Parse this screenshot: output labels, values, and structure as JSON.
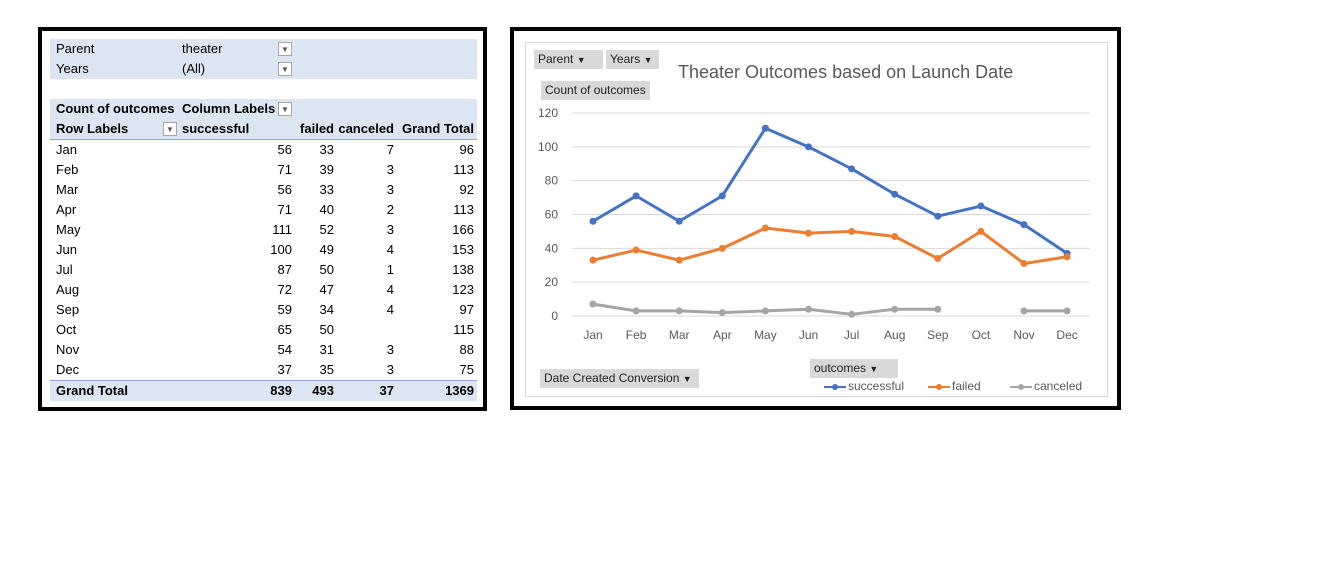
{
  "pivot": {
    "filters": [
      {
        "label": "Parent",
        "value": "theater",
        "icon": "filter-icon"
      },
      {
        "label": "Years",
        "value": "(All)",
        "icon": "dropdown-icon"
      }
    ],
    "values_label": "Count of outcomes",
    "column_labels": "Column Labels",
    "row_labels": "Row Labels",
    "columns": [
      "successful",
      "failed",
      "canceled",
      "Grand Total"
    ],
    "rows": [
      {
        "label": "Jan",
        "successful": "56",
        "failed": "33",
        "canceled": "7",
        "total": "96"
      },
      {
        "label": "Feb",
        "successful": "71",
        "failed": "39",
        "canceled": "3",
        "total": "113"
      },
      {
        "label": "Mar",
        "successful": "56",
        "failed": "33",
        "canceled": "3",
        "total": "92"
      },
      {
        "label": "Apr",
        "successful": "71",
        "failed": "40",
        "canceled": "2",
        "total": "113"
      },
      {
        "label": "May",
        "successful": "111",
        "failed": "52",
        "canceled": "3",
        "total": "166"
      },
      {
        "label": "Jun",
        "successful": "100",
        "failed": "49",
        "canceled": "4",
        "total": "153"
      },
      {
        "label": "Jul",
        "successful": "87",
        "failed": "50",
        "canceled": "1",
        "total": "138"
      },
      {
        "label": "Aug",
        "successful": "72",
        "failed": "47",
        "canceled": "4",
        "total": "123"
      },
      {
        "label": "Sep",
        "successful": "59",
        "failed": "34",
        "canceled": "4",
        "total": "97"
      },
      {
        "label": "Oct",
        "successful": "65",
        "failed": "50",
        "canceled": "",
        "total": "115"
      },
      {
        "label": "Nov",
        "successful": "54",
        "failed": "31",
        "canceled": "3",
        "total": "88"
      },
      {
        "label": "Dec",
        "successful": "37",
        "failed": "35",
        "canceled": "3",
        "total": "75"
      }
    ],
    "grand_total": {
      "label": "Grand Total",
      "successful": "839",
      "failed": "493",
      "canceled": "37",
      "total": "1369"
    }
  },
  "chart_controls": {
    "parent_button": "Parent",
    "years_button": "Years",
    "values_button": "Count of outcomes",
    "axis_button": "Date Created Conversion",
    "legend_button": "outcomes"
  },
  "chart_data": {
    "type": "line",
    "title": "Theater Outcomes based on Launch Date",
    "xlabel": "",
    "ylabel": "Count of outcomes",
    "categories": [
      "Jan",
      "Feb",
      "Mar",
      "Apr",
      "May",
      "Jun",
      "Jul",
      "Aug",
      "Sep",
      "Oct",
      "Nov",
      "Dec"
    ],
    "ylim": [
      0,
      120
    ],
    "yticks": [
      0,
      20,
      40,
      60,
      80,
      100,
      120
    ],
    "grid": true,
    "legend": "bottom-right",
    "series": [
      {
        "name": "successful",
        "color": "#4472c4",
        "values": [
          56,
          71,
          56,
          71,
          111,
          100,
          87,
          72,
          59,
          65,
          54,
          37
        ]
      },
      {
        "name": "failed",
        "color": "#ed7d31",
        "values": [
          33,
          39,
          33,
          40,
          52,
          49,
          50,
          47,
          34,
          50,
          31,
          35
        ]
      },
      {
        "name": "canceled",
        "color": "#a5a5a5",
        "values": [
          7,
          3,
          3,
          2,
          3,
          4,
          1,
          4,
          4,
          null,
          3,
          3
        ]
      }
    ]
  }
}
